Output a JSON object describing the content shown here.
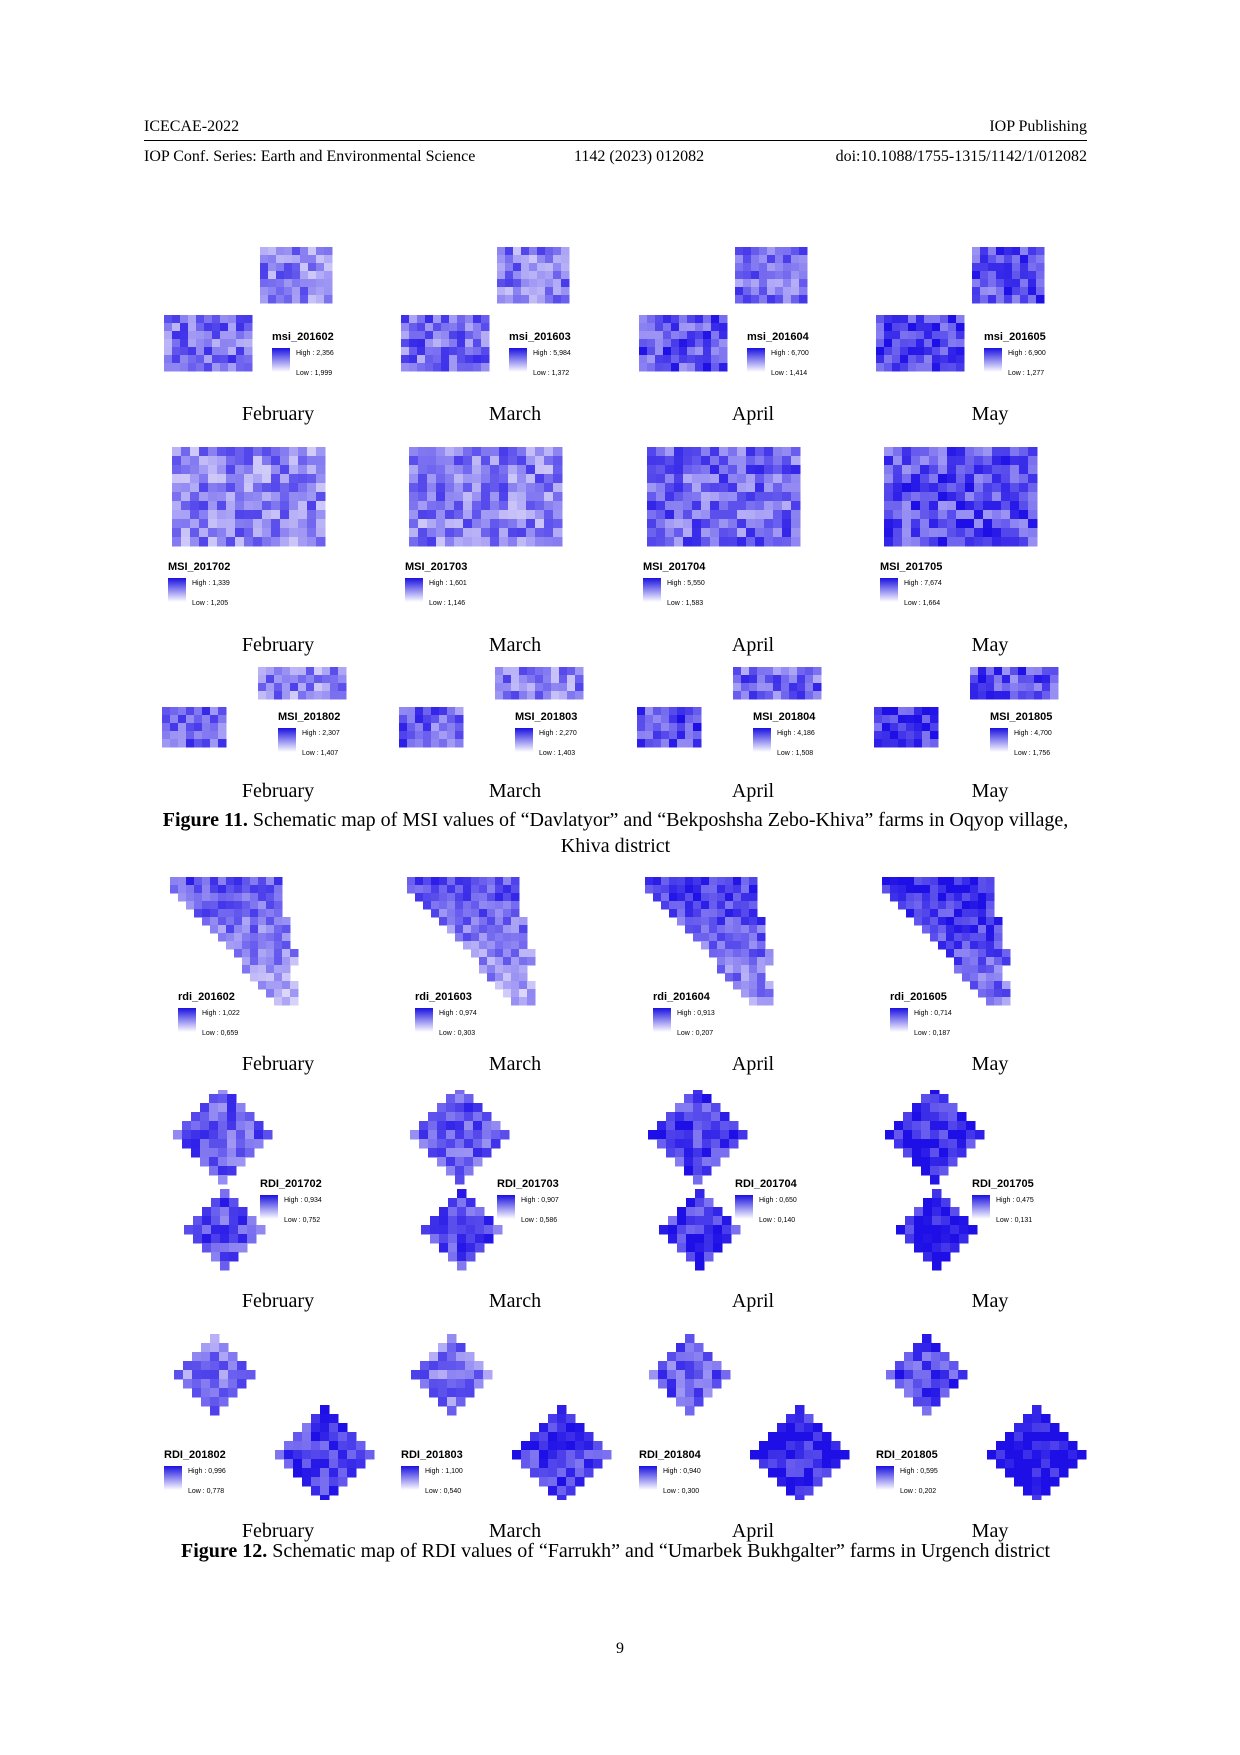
{
  "header": {
    "conference": "ICECAE-2022",
    "publisher": "IOP Publishing",
    "series": "IOP Conf. Series: Earth and Environmental Science",
    "volume": "1142 (2023) 012082",
    "doi": "doi:10.1088/1755-1315/1142/1/012082"
  },
  "figure11": {
    "label": "Figure 11.",
    "caption": " Schematic map of MSI values of “Davlatyor” and “Bekposhsha Zebo-Khiva” farms in Oqyop village, Khiva district",
    "rows": [
      [
        {
          "name": "msi_201602",
          "high": "High : 2,356",
          "low": "Low : 1,999",
          "month": "February"
        },
        {
          "name": "msi_201603",
          "high": "High : 5,984",
          "low": "Low : 1,372",
          "month": "March"
        },
        {
          "name": "msi_201604",
          "high": "High : 6,700",
          "low": "Low : 1,414",
          "month": "April"
        },
        {
          "name": "msi_201605",
          "high": "High : 6,900",
          "low": "Low : 1,277",
          "month": "May"
        }
      ],
      [
        {
          "name": "MSI_201702",
          "high": "High : 1,339",
          "low": "Low : 1,205",
          "month": "February"
        },
        {
          "name": "MSI_201703",
          "high": "High : 1,601",
          "low": "Low : 1,146",
          "month": "March"
        },
        {
          "name": "MSI_201704",
          "high": "High : 5,550",
          "low": "Low : 1,583",
          "month": "April"
        },
        {
          "name": "MSI_201705",
          "high": "High : 7,674",
          "low": "Low : 1,664",
          "month": "May"
        }
      ],
      [
        {
          "name": "MSI_201802",
          "high": "High : 2,307",
          "low": "Low : 1,407",
          "month": "February"
        },
        {
          "name": "MSI_201803",
          "high": "High : 2,270",
          "low": "Low : 1,403",
          "month": "March"
        },
        {
          "name": "MSI_201804",
          "high": "High : 4,186",
          "low": "Low : 1,508",
          "month": "April"
        },
        {
          "name": "MSI_201805",
          "high": "High : 4,700",
          "low": "Low : 1,756",
          "month": "May"
        }
      ]
    ]
  },
  "figure12": {
    "label": "Figure 12.",
    "caption": " Schematic map of RDI values of “Farrukh” and “Umarbek Bukhgalter” farms in Urgench district",
    "rows": [
      [
        {
          "name": "rdi_201602",
          "high": "High : 1,022",
          "low": "Low : 0,659",
          "month": "February"
        },
        {
          "name": "rdi_201603",
          "high": "High : 0,974",
          "low": "Low : 0,303",
          "month": "March"
        },
        {
          "name": "rdi_201604",
          "high": "High : 0,913",
          "low": "Low : 0,207",
          "month": "April"
        },
        {
          "name": "rdi_201605",
          "high": "High : 0,714",
          "low": "Low : 0,187",
          "month": "May"
        }
      ],
      [
        {
          "name": "RDI_201702",
          "high": "High : 0,934",
          "low": "Low : 0,752",
          "month": "February"
        },
        {
          "name": "RDI_201703",
          "high": "High : 0,907",
          "low": "Low : 0,586",
          "month": "March"
        },
        {
          "name": "RDI_201704",
          "high": "High : 0,650",
          "low": "Low : 0,140",
          "month": "April"
        },
        {
          "name": "RDI_201705",
          "high": "High : 0,475",
          "low": "Low : 0,131",
          "month": "May"
        }
      ],
      [
        {
          "name": "RDI_201802",
          "high": "High : 0,996",
          "low": "Low : 0,778",
          "month": "February"
        },
        {
          "name": "RDI_201803",
          "high": "High : 1,100",
          "low": "Low : 0,540",
          "month": "March"
        },
        {
          "name": "RDI_201804",
          "high": "High : 0,940",
          "low": "Low : 0,300",
          "month": "April"
        },
        {
          "name": "RDI_201805",
          "high": "High : 0,595",
          "low": "Low : 0,202",
          "month": "May"
        }
      ]
    ]
  },
  "page_number": "9",
  "colors": {
    "high": "#1a10e0",
    "low": "#ffffff",
    "map_base": "#6a5cf0"
  }
}
